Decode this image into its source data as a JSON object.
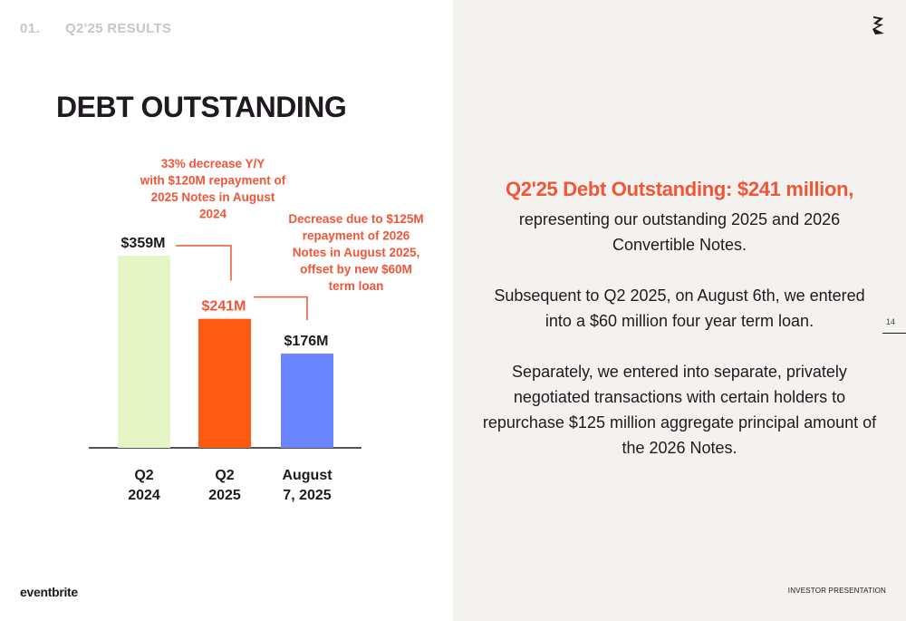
{
  "header": {
    "section_number": "01.",
    "section_name": "Q2'25 RESULTS"
  },
  "title": "DEBT OUTSTANDING",
  "chart_data": {
    "type": "bar",
    "categories": [
      [
        "Q2",
        "2024"
      ],
      [
        "Q2",
        "2025"
      ],
      [
        "August",
        "7, 2025"
      ]
    ],
    "values": [
      359,
      241,
      176
    ],
    "value_labels": [
      "$359M",
      "$241M",
      "$176M"
    ],
    "units": "$M",
    "bar_colors": [
      "#e6f5c6",
      "#ff5a14",
      "#6b85ff"
    ],
    "value_label_colors": [
      "#1e1a20",
      "#f05537",
      "#1e1a20"
    ],
    "ylim": [
      0,
      359
    ],
    "grid": false,
    "annotations": [
      {
        "lines": [
          "33% decrease Y/Y",
          "with $120M repayment of",
          "2025 Notes in August",
          "2024"
        ],
        "color": "#f05537"
      },
      {
        "lines": [
          "Decrease due to $125M",
          "repayment of 2026",
          "Notes in August 2025,",
          "offset by new $60M",
          "term loan"
        ],
        "color": "#f05537"
      }
    ]
  },
  "summary": {
    "headline": "Q2'25 Debt Outstanding: $241 million,",
    "paragraph1": "representing our outstanding 2025 and 2026 Convertible Notes.",
    "paragraph2": "Subsequent to Q2 2025, on August 6th, we entered into a $60 million four year term loan.",
    "paragraph3": "Separately, we entered into separate, privately negotiated transactions with certain holders to repurchase $125 million aggregate principal amount of the 2026 Notes."
  },
  "page_number": "14",
  "footer": {
    "brand": "eventbrite",
    "label": "INVESTOR PRESENTATION"
  },
  "icons": {
    "brand_mark": "eventbrite-e-mark-icon"
  },
  "colors": {
    "accent": "#f05537",
    "panel_bg": "#f3f2ee",
    "text": "#1e1a20"
  }
}
